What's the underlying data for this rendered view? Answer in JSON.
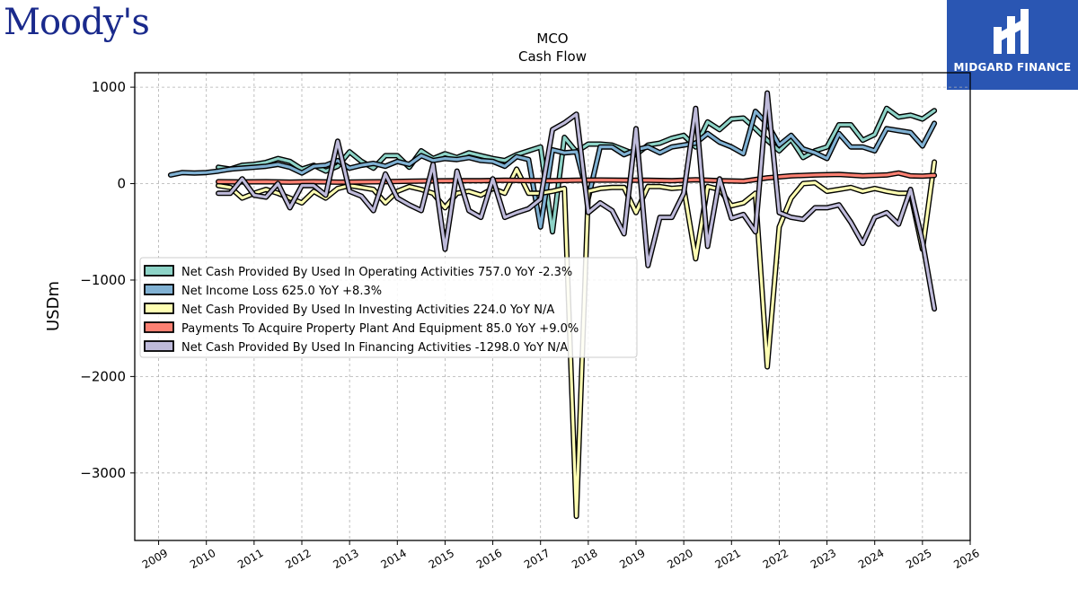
{
  "branding": {
    "left_logo": "Moody's",
    "right_logo": "MIDGARD FINANCE",
    "accent": "#2a56b3"
  },
  "chart_data": {
    "type": "line",
    "title": "MCO",
    "subtitle": "Cash Flow",
    "xlabel": "",
    "ylabel": "USDm",
    "xlim": [
      2008.5,
      2026.0
    ],
    "ylim": [
      -3700,
      1150
    ],
    "x_ticks": [
      "2009",
      "2010",
      "2011",
      "2012",
      "2013",
      "2014",
      "2015",
      "2016",
      "2017",
      "2018",
      "2019",
      "2020",
      "2021",
      "2022",
      "2023",
      "2024",
      "2025",
      "2026"
    ],
    "y_ticks": [
      1000,
      0,
      -1000,
      -2000,
      -3000
    ],
    "y_tick_labels": [
      "1000",
      "0",
      "−1000",
      "−2000",
      "−3000"
    ],
    "grid": true,
    "legend_position": "center-left",
    "series": [
      {
        "name": "Net Cash Provided By Used In Operating Activities",
        "legend": "Net Cash Provided By Used In Operating Activities  757.0 YoY -2.3%",
        "color": "#8dd3c7",
        "points": [
          [
            2010.25,
            170
          ],
          [
            2010.5,
            150
          ],
          [
            2010.75,
            190
          ],
          [
            2011.0,
            200
          ],
          [
            2011.25,
            220
          ],
          [
            2011.5,
            260
          ],
          [
            2011.75,
            230
          ],
          [
            2012.0,
            150
          ],
          [
            2012.25,
            190
          ],
          [
            2012.5,
            130
          ],
          [
            2012.75,
            180
          ],
          [
            2013.0,
            330
          ],
          [
            2013.25,
            230
          ],
          [
            2013.5,
            160
          ],
          [
            2013.75,
            290
          ],
          [
            2014.0,
            290
          ],
          [
            2014.25,
            170
          ],
          [
            2014.5,
            340
          ],
          [
            2014.75,
            260
          ],
          [
            2015.0,
            310
          ],
          [
            2015.25,
            270
          ],
          [
            2015.5,
            320
          ],
          [
            2015.75,
            290
          ],
          [
            2016.0,
            260
          ],
          [
            2016.25,
            240
          ],
          [
            2016.5,
            300
          ],
          [
            2016.75,
            340
          ],
          [
            2017.0,
            380
          ],
          [
            2017.25,
            -500
          ],
          [
            2017.5,
            480
          ],
          [
            2017.75,
            330
          ],
          [
            2018.0,
            410
          ],
          [
            2018.25,
            410
          ],
          [
            2018.5,
            400
          ],
          [
            2018.75,
            350
          ],
          [
            2019.0,
            300
          ],
          [
            2019.25,
            400
          ],
          [
            2019.5,
            420
          ],
          [
            2019.75,
            470
          ],
          [
            2020.0,
            500
          ],
          [
            2020.25,
            380
          ],
          [
            2020.5,
            640
          ],
          [
            2020.75,
            560
          ],
          [
            2021.0,
            670
          ],
          [
            2021.25,
            680
          ],
          [
            2021.5,
            570
          ],
          [
            2021.75,
            450
          ],
          [
            2022.0,
            340
          ],
          [
            2022.25,
            460
          ],
          [
            2022.5,
            270
          ],
          [
            2022.75,
            340
          ],
          [
            2023.0,
            380
          ],
          [
            2023.25,
            610
          ],
          [
            2023.5,
            610
          ],
          [
            2023.75,
            450
          ],
          [
            2024.0,
            510
          ],
          [
            2024.25,
            780
          ],
          [
            2024.5,
            690
          ],
          [
            2024.75,
            710
          ],
          [
            2025.0,
            670
          ],
          [
            2025.25,
            757
          ]
        ]
      },
      {
        "name": "Net Income Loss",
        "legend": "Net Income Loss  625.0 YoY +8.3%",
        "color": "#80b1d3",
        "points": [
          [
            2009.25,
            90
          ],
          [
            2009.5,
            115
          ],
          [
            2009.75,
            110
          ],
          [
            2010.0,
            115
          ],
          [
            2010.25,
            130
          ],
          [
            2010.5,
            150
          ],
          [
            2010.75,
            160
          ],
          [
            2011.0,
            170
          ],
          [
            2011.25,
            180
          ],
          [
            2011.5,
            200
          ],
          [
            2011.75,
            170
          ],
          [
            2012.0,
            110
          ],
          [
            2012.25,
            180
          ],
          [
            2012.5,
            190
          ],
          [
            2012.75,
            240
          ],
          [
            2013.0,
            160
          ],
          [
            2013.25,
            190
          ],
          [
            2013.5,
            210
          ],
          [
            2013.75,
            180
          ],
          [
            2014.0,
            230
          ],
          [
            2014.25,
            200
          ],
          [
            2014.5,
            290
          ],
          [
            2014.75,
            240
          ],
          [
            2015.0,
            260
          ],
          [
            2015.25,
            250
          ],
          [
            2015.5,
            270
          ],
          [
            2015.75,
            240
          ],
          [
            2016.0,
            230
          ],
          [
            2016.25,
            180
          ],
          [
            2016.5,
            280
          ],
          [
            2016.75,
            250
          ],
          [
            2017.0,
            -450
          ],
          [
            2017.25,
            350
          ],
          [
            2017.5,
            320
          ],
          [
            2017.75,
            330
          ],
          [
            2018.0,
            -150
          ],
          [
            2018.25,
            380
          ],
          [
            2018.5,
            380
          ],
          [
            2018.75,
            300
          ],
          [
            2019.0,
            350
          ],
          [
            2019.25,
            380
          ],
          [
            2019.5,
            320
          ],
          [
            2019.75,
            380
          ],
          [
            2020.0,
            400
          ],
          [
            2020.25,
            420
          ],
          [
            2020.5,
            520
          ],
          [
            2020.75,
            430
          ],
          [
            2021.0,
            380
          ],
          [
            2021.25,
            310
          ],
          [
            2021.5,
            750
          ],
          [
            2021.75,
            620
          ],
          [
            2022.0,
            400
          ],
          [
            2022.25,
            500
          ],
          [
            2022.5,
            360
          ],
          [
            2022.75,
            320
          ],
          [
            2023.0,
            260
          ],
          [
            2023.25,
            520
          ],
          [
            2023.5,
            380
          ],
          [
            2023.75,
            380
          ],
          [
            2024.0,
            340
          ],
          [
            2024.25,
            570
          ],
          [
            2024.5,
            550
          ],
          [
            2024.75,
            530
          ],
          [
            2025.0,
            390
          ],
          [
            2025.25,
            625
          ]
        ]
      },
      {
        "name": "Net Cash Provided By Used In Investing Activities",
        "legend": "Net Cash Provided By Used In Investing Activities  224.0 YoY N/A",
        "color": "#ffffb3",
        "points": [
          [
            2010.25,
            -20
          ],
          [
            2010.5,
            -40
          ],
          [
            2010.75,
            -150
          ],
          [
            2011.0,
            -100
          ],
          [
            2011.25,
            -60
          ],
          [
            2011.5,
            -100
          ],
          [
            2011.75,
            -150
          ],
          [
            2012.0,
            -200
          ],
          [
            2012.25,
            -80
          ],
          [
            2012.5,
            -150
          ],
          [
            2012.75,
            -50
          ],
          [
            2013.0,
            -20
          ],
          [
            2013.25,
            -40
          ],
          [
            2013.5,
            -60
          ],
          [
            2013.75,
            -200
          ],
          [
            2014.0,
            -80
          ],
          [
            2014.25,
            -30
          ],
          [
            2014.5,
            -60
          ],
          [
            2014.75,
            -100
          ],
          [
            2015.0,
            -250
          ],
          [
            2015.25,
            -100
          ],
          [
            2015.5,
            -80
          ],
          [
            2015.75,
            -120
          ],
          [
            2016.0,
            -50
          ],
          [
            2016.25,
            -100
          ],
          [
            2016.5,
            150
          ],
          [
            2016.75,
            -100
          ],
          [
            2017.0,
            -100
          ],
          [
            2017.25,
            -80
          ],
          [
            2017.5,
            -50
          ],
          [
            2017.75,
            -3450
          ],
          [
            2018.0,
            -80
          ],
          [
            2018.25,
            -50
          ],
          [
            2018.5,
            -40
          ],
          [
            2018.75,
            -40
          ],
          [
            2019.0,
            -300
          ],
          [
            2019.25,
            -30
          ],
          [
            2019.5,
            -30
          ],
          [
            2019.75,
            -50
          ],
          [
            2020.0,
            -40
          ],
          [
            2020.25,
            -780
          ],
          [
            2020.5,
            -30
          ],
          [
            2020.75,
            -60
          ],
          [
            2021.0,
            -230
          ],
          [
            2021.25,
            -200
          ],
          [
            2021.5,
            -100
          ],
          [
            2021.75,
            -1900
          ],
          [
            2022.0,
            -450
          ],
          [
            2022.25,
            -150
          ],
          [
            2022.5,
            0
          ],
          [
            2022.75,
            10
          ],
          [
            2023.0,
            -80
          ],
          [
            2023.25,
            -60
          ],
          [
            2023.5,
            -40
          ],
          [
            2023.75,
            -80
          ],
          [
            2024.0,
            -50
          ],
          [
            2024.25,
            -80
          ],
          [
            2024.5,
            -100
          ],
          [
            2024.75,
            -100
          ],
          [
            2025.0,
            -680
          ],
          [
            2025.25,
            224
          ]
        ]
      },
      {
        "name": "Payments To Acquire Property Plant And Equipment",
        "legend": "Payments To Acquire Property Plant And Equipment  85.0 YoY +9.0%",
        "color": "#fb8072",
        "points": [
          [
            2010.25,
            20
          ],
          [
            2010.75,
            18
          ],
          [
            2011.25,
            20
          ],
          [
            2011.75,
            15
          ],
          [
            2012.25,
            20
          ],
          [
            2012.75,
            15
          ],
          [
            2013.25,
            18
          ],
          [
            2013.75,
            20
          ],
          [
            2014.25,
            25
          ],
          [
            2014.75,
            28
          ],
          [
            2015.25,
            30
          ],
          [
            2015.75,
            30
          ],
          [
            2016.25,
            35
          ],
          [
            2016.75,
            32
          ],
          [
            2017.25,
            30
          ],
          [
            2017.75,
            35
          ],
          [
            2018.25,
            38
          ],
          [
            2018.75,
            35
          ],
          [
            2019.25,
            35
          ],
          [
            2019.75,
            30
          ],
          [
            2020.25,
            40
          ],
          [
            2020.75,
            30
          ],
          [
            2021.25,
            25
          ],
          [
            2021.75,
            60
          ],
          [
            2022.25,
            80
          ],
          [
            2022.75,
            90
          ],
          [
            2023.25,
            95
          ],
          [
            2023.75,
            80
          ],
          [
            2024.25,
            90
          ],
          [
            2024.5,
            110
          ],
          [
            2024.75,
            80
          ],
          [
            2025.0,
            78
          ],
          [
            2025.25,
            85
          ]
        ]
      },
      {
        "name": "Net Cash Provided By Used In Financing Activities",
        "legend": "Net Cash Provided By Used In Financing Activities  -1298.0 YoY N/A",
        "color": "#bebada",
        "points": [
          [
            2010.25,
            -100
          ],
          [
            2010.5,
            -100
          ],
          [
            2010.75,
            50
          ],
          [
            2011.0,
            -120
          ],
          [
            2011.25,
            -140
          ],
          [
            2011.5,
            0
          ],
          [
            2011.75,
            -250
          ],
          [
            2012.0,
            -20
          ],
          [
            2012.25,
            -20
          ],
          [
            2012.5,
            -120
          ],
          [
            2012.75,
            440
          ],
          [
            2013.0,
            -80
          ],
          [
            2013.25,
            -130
          ],
          [
            2013.5,
            -280
          ],
          [
            2013.75,
            100
          ],
          [
            2014.0,
            -150
          ],
          [
            2014.25,
            -220
          ],
          [
            2014.5,
            -280
          ],
          [
            2014.75,
            200
          ],
          [
            2015.0,
            -680
          ],
          [
            2015.25,
            130
          ],
          [
            2015.5,
            -280
          ],
          [
            2015.75,
            -350
          ],
          [
            2016.0,
            50
          ],
          [
            2016.25,
            -350
          ],
          [
            2016.5,
            -300
          ],
          [
            2016.75,
            -260
          ],
          [
            2017.0,
            -160
          ],
          [
            2017.25,
            560
          ],
          [
            2017.5,
            630
          ],
          [
            2017.75,
            720
          ],
          [
            2018.0,
            -300
          ],
          [
            2018.25,
            -200
          ],
          [
            2018.5,
            -280
          ],
          [
            2018.75,
            -520
          ],
          [
            2019.0,
            570
          ],
          [
            2019.25,
            -850
          ],
          [
            2019.5,
            -350
          ],
          [
            2019.75,
            -350
          ],
          [
            2020.0,
            -100
          ],
          [
            2020.25,
            780
          ],
          [
            2020.5,
            -650
          ],
          [
            2020.75,
            50
          ],
          [
            2021.0,
            -360
          ],
          [
            2021.25,
            -320
          ],
          [
            2021.5,
            -500
          ],
          [
            2021.75,
            940
          ],
          [
            2022.0,
            -300
          ],
          [
            2022.25,
            -350
          ],
          [
            2022.5,
            -370
          ],
          [
            2022.75,
            -250
          ],
          [
            2023.0,
            -250
          ],
          [
            2023.25,
            -220
          ],
          [
            2023.5,
            -400
          ],
          [
            2023.75,
            -620
          ],
          [
            2024.0,
            -350
          ],
          [
            2024.25,
            -300
          ],
          [
            2024.5,
            -420
          ],
          [
            2024.75,
            -60
          ],
          [
            2025.0,
            -600
          ],
          [
            2025.25,
            -1298
          ]
        ]
      }
    ]
  }
}
